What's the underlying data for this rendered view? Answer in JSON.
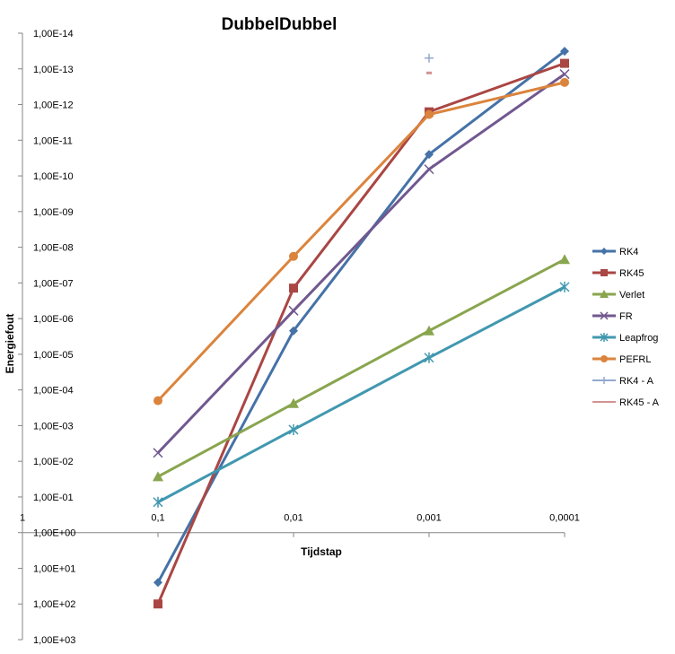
{
  "chart_data": {
    "type": "line",
    "title": "DubbelDubbel",
    "xlabel": "Tijdstap",
    "ylabel": "Energiefout",
    "x": [
      0.1,
      0.01,
      0.001,
      0.0001
    ],
    "x_tick_labels": [
      "1",
      "0,1",
      "0,01",
      "0,001",
      "0,0001"
    ],
    "y_tick_labels": [
      "1,00E-14",
      "1,00E-13",
      "1,00E-12",
      "1,00E-11",
      "1,00E-10",
      "1,00E-09",
      "1,00E-08",
      "1,00E-07",
      "1,00E-06",
      "1,00E-05",
      "1,00E-04",
      "1,00E-03",
      "1,00E-02",
      "1,00E-01",
      "1,00E+00",
      "1,00E+01",
      "1,00E+02",
      "1,00E+03"
    ],
    "y_scale": "log",
    "y_axis_reversed": true,
    "y_exponent_range": [
      -14,
      3
    ],
    "x_axis_crosses_at": 1,
    "legend_position": "right",
    "grid": false,
    "series": [
      {
        "name": "RK4",
        "color": "#4572A7",
        "marker": "diamond",
        "values": [
          25,
          2.2e-06,
          2.5e-11,
          3.2e-14
        ]
      },
      {
        "name": "RK45",
        "color": "#AA4643",
        "marker": "square",
        "values": [
          100,
          1.4e-07,
          1.6e-12,
          7e-14
        ]
      },
      {
        "name": "Verlet",
        "color": "#89A54E",
        "marker": "triangle",
        "values": [
          0.027,
          0.00024,
          2.2e-06,
          2.2e-08
        ]
      },
      {
        "name": "FR",
        "color": "#71588F",
        "marker": "x",
        "values": [
          0.0058,
          6e-07,
          6.5e-11,
          1.4e-13
        ]
      },
      {
        "name": "Leapfrog",
        "color": "#4198AF",
        "marker": "star",
        "values": [
          0.14,
          0.0013,
          1.25e-05,
          1.3e-07
        ]
      },
      {
        "name": "PEFRL",
        "color": "#DB843D",
        "marker": "circle",
        "values": [
          0.0002,
          1.8e-08,
          1.9e-12,
          2.4e-13
        ]
      },
      {
        "name": "RK4 - A",
        "color": "#93A9CF",
        "marker": "plus",
        "values": [
          null,
          null,
          5e-14,
          null
        ]
      },
      {
        "name": "RK45 - A",
        "color": "#D19392",
        "marker": "dash",
        "values": [
          null,
          null,
          1.3e-13,
          null
        ]
      }
    ]
  }
}
